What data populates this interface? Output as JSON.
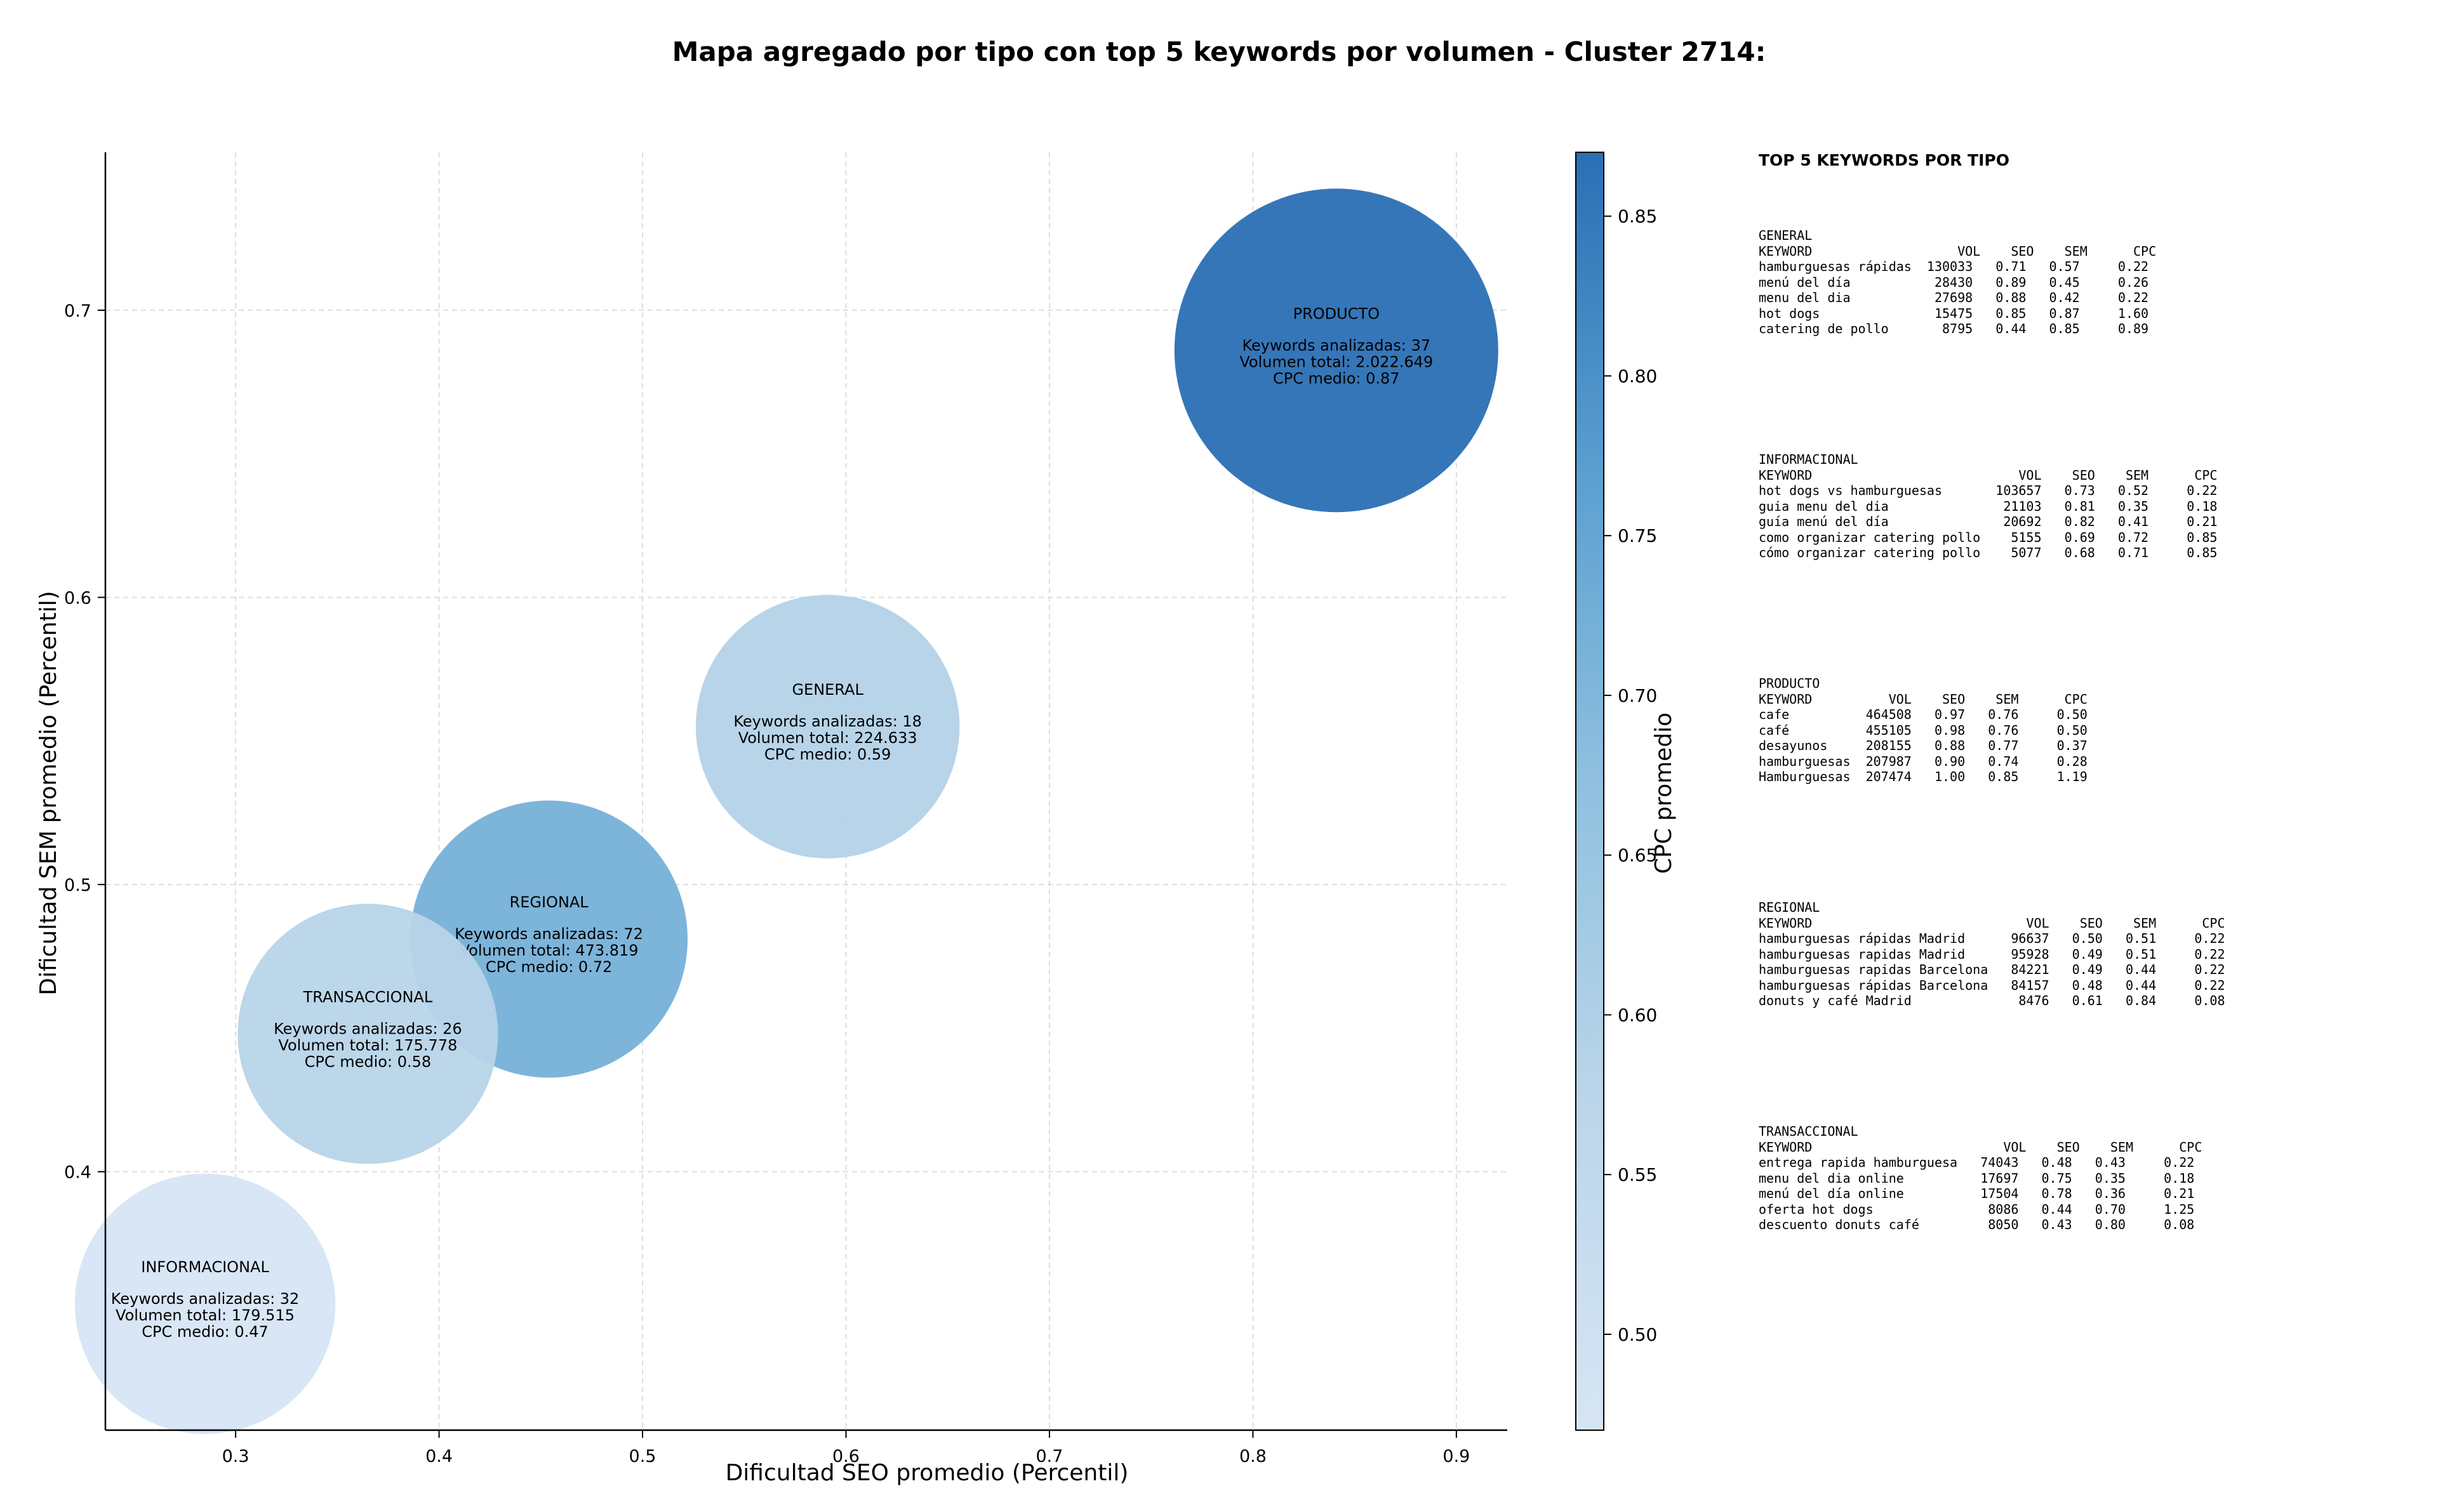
{
  "chart_data": {
    "type": "scatter",
    "title": "Mapa agregado por tipo con top 5 keywords por volumen - Cluster 2714:",
    "xlabel": "Dificultad SEO promedio (Percentil)",
    "ylabel": "Dificultad SEM promedio (Percentil)",
    "xlim": [
      0.236,
      0.925
    ],
    "ylim": [
      0.31,
      0.755
    ],
    "xticks": [
      0.3,
      0.4,
      0.5,
      0.6,
      0.7,
      0.8,
      0.9
    ],
    "yticks": [
      0.4,
      0.5,
      0.6,
      0.7
    ],
    "grid": true,
    "bubble_size": "Volumen total",
    "colorbar": {
      "label": "CPC promedio",
      "range": [
        0.47,
        0.87
      ],
      "ticks": [
        0.5,
        0.55,
        0.6,
        0.65,
        0.7,
        0.75,
        0.8,
        0.85
      ]
    },
    "points": [
      {
        "name": "PRODUCTO",
        "x": 0.841,
        "y": 0.686,
        "keywords_text": "Keywords analizadas: 37",
        "volume_text": "Volumen total: 2.022.649",
        "cpc_text": "CPC medio: 0.87",
        "cpc": 0.87,
        "volume": 2022649
      },
      {
        "name": "GENERAL",
        "x": 0.591,
        "y": 0.555,
        "keywords_text": "Keywords analizadas: 18",
        "volume_text": "Volumen total: 224.633",
        "cpc_text": "CPC medio: 0.59",
        "cpc": 0.59,
        "volume": 224633
      },
      {
        "name": "REGIONAL",
        "x": 0.454,
        "y": 0.481,
        "keywords_text": "Keywords analizadas: 72",
        "volume_text": "Volumen total: 473.819",
        "cpc_text": "CPC medio: 0.72",
        "cpc": 0.72,
        "volume": 473819
      },
      {
        "name": "TRANSACCIONAL",
        "x": 0.365,
        "y": 0.448,
        "keywords_text": "Keywords analizadas: 26",
        "volume_text": "Volumen total: 175.778",
        "cpc_text": "CPC medio: 0.58",
        "cpc": 0.58,
        "volume": 175778
      },
      {
        "name": "INFORMACIONAL",
        "x": 0.285,
        "y": 0.354,
        "keywords_text": "Keywords analizadas: 32",
        "volume_text": "Volumen total: 179.515",
        "cpc_text": "CPC medio: 0.47",
        "cpc": 0.47,
        "volume": 179515
      }
    ]
  },
  "side_panel": {
    "title": "TOP 5 KEYWORDS POR TIPO",
    "blocks": [
      {
        "text": "GENERAL\nKEYWORD                   VOL    SEO    SEM      CPC\nhamburguesas rápidas  130033   0.71   0.57     0.22\nmenú del día           28430   0.89   0.45     0.26\nmenu del dia           27698   0.88   0.42     0.22\nhot dogs               15475   0.85   0.87     1.60\ncatering de pollo       8795   0.44   0.85     0.89"
      },
      {
        "text": "INFORMACIONAL\nKEYWORD                           VOL    SEO    SEM      CPC\nhot dogs vs hamburguesas       103657   0.73   0.52     0.22\nguia menu del dia               21103   0.81   0.35     0.18\nguía menú del día               20692   0.82   0.41     0.21\ncomo organizar catering pollo    5155   0.69   0.72     0.85\ncómo organizar catering pollo    5077   0.68   0.71     0.85"
      },
      {
        "text": "PRODUCTO\nKEYWORD          VOL    SEO    SEM      CPC\ncafe          464508   0.97   0.76     0.50\ncafé          455105   0.98   0.76     0.50\ndesayunos     208155   0.88   0.77     0.37\nhamburguesas  207987   0.90   0.74     0.28\nHamburguesas  207474   1.00   0.85     1.19"
      },
      {
        "text": "REGIONAL\nKEYWORD                            VOL    SEO    SEM      CPC\nhamburguesas rápidas Madrid      96637   0.50   0.51     0.22\nhamburguesas rapidas Madrid      95928   0.49   0.51     0.22\nhamburguesas rapidas Barcelona   84221   0.49   0.44     0.22\nhamburguesas rápidas Barcelona   84157   0.48   0.44     0.22\ndonuts y café Madrid              8476   0.61   0.84     0.08"
      },
      {
        "text": "TRANSACCIONAL\nKEYWORD                         VOL    SEO    SEM      CPC\nentrega rapida hamburguesa   74043   0.48   0.43     0.22\nmenu del dia online          17697   0.75   0.35     0.18\nmenú del día online          17504   0.78   0.36     0.21\noferta hot dogs               8086   0.44   0.70     1.25\ndescuento donuts café         8050   0.43   0.80     0.08"
      }
    ]
  }
}
